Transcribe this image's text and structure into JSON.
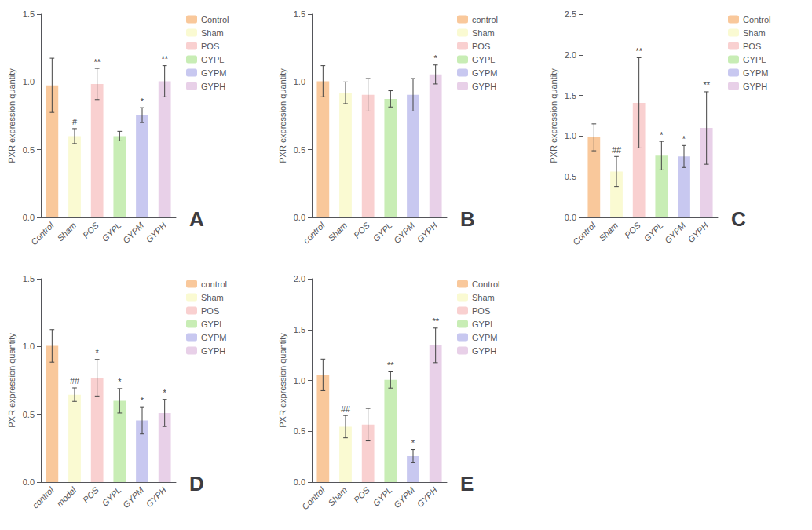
{
  "chart_data": [
    {
      "type": "bar",
      "title": "A",
      "ylabel": "PXR expression quantity",
      "categories": [
        "Control",
        "Sham",
        "POS",
        "GYPL",
        "GYPM",
        "GYPH"
      ],
      "ylim": [
        0,
        1.5
      ],
      "yticks": [
        {
          "value": 0.0,
          "label": "0.0"
        },
        0.5,
        {
          "value": 1.0,
          "label": "1.0"
        },
        1.5
      ],
      "grid": false,
      "legend": "right",
      "series": [
        {
          "name": "Control",
          "color": "#F9C89B",
          "values": [
            0.975,
            null,
            null,
            null,
            null,
            null
          ],
          "errors": [
            0.2,
            null,
            null,
            null,
            null,
            null
          ]
        },
        {
          "name": "Sham",
          "color": "#FAFAD2",
          "values": [
            null,
            0.6,
            null,
            null,
            null,
            null
          ],
          "errors": [
            null,
            0.055,
            null,
            null,
            null,
            null
          ],
          "annotations": [
            null,
            "#",
            null,
            null,
            null,
            null
          ]
        },
        {
          "name": "POS",
          "color": "#F9D0D0",
          "values": [
            null,
            null,
            0.985,
            null,
            null,
            null
          ],
          "errors": [
            null,
            null,
            0.115,
            null,
            null,
            null
          ],
          "annotations": [
            null,
            null,
            "**",
            null,
            null,
            null
          ]
        },
        {
          "name": "GYPL",
          "color": "#C8EDB5",
          "values": [
            null,
            null,
            null,
            0.6,
            null,
            null
          ],
          "errors": [
            null,
            null,
            null,
            0.035,
            null,
            null
          ]
        },
        {
          "name": "GYPM",
          "color": "#C8C8F0",
          "values": [
            null,
            null,
            null,
            null,
            0.755,
            null
          ],
          "errors": [
            null,
            null,
            null,
            null,
            0.055,
            null
          ],
          "annotations": [
            null,
            null,
            null,
            null,
            "*",
            null
          ]
        },
        {
          "name": "GYPH",
          "color": "#E8D0E8",
          "values": [
            null,
            null,
            null,
            null,
            null,
            1.005
          ],
          "errors": [
            null,
            null,
            null,
            null,
            null,
            0.115
          ],
          "annotations": [
            null,
            null,
            null,
            null,
            null,
            "**"
          ]
        }
      ]
    },
    {
      "type": "bar",
      "title": "B",
      "ylabel": "PXR expression quantity",
      "categories": [
        "control",
        "Sham",
        "POS",
        "GYPL",
        "GYPM",
        "GYPH"
      ],
      "ylim": [
        0,
        1.5
      ],
      "yticks": [
        {
          "value": 0.0,
          "label": "0.0"
        },
        0.5,
        {
          "value": 1.0,
          "label": "1.0"
        },
        1.5
      ],
      "grid": false,
      "legend": "right",
      "series": [
        {
          "name": "control",
          "color": "#F9C89B",
          "values": [
            1.005,
            null,
            null,
            null,
            null,
            null
          ],
          "errors": [
            0.115,
            null,
            null,
            null,
            null,
            null
          ]
        },
        {
          "name": "Sham",
          "color": "#FAFAD2",
          "values": [
            null,
            0.92,
            null,
            null,
            null,
            null
          ],
          "errors": [
            null,
            0.08,
            null,
            null,
            null,
            null
          ]
        },
        {
          "name": "POS",
          "color": "#F9D0D0",
          "values": [
            null,
            null,
            0.905,
            null,
            null,
            null
          ],
          "errors": [
            null,
            null,
            0.12,
            null,
            null,
            null
          ]
        },
        {
          "name": "GYPL",
          "color": "#C8EDB5",
          "values": [
            null,
            null,
            null,
            0.875,
            null,
            null
          ],
          "errors": [
            null,
            null,
            null,
            0.06,
            null,
            null
          ]
        },
        {
          "name": "GYPM",
          "color": "#C8C8F0",
          "values": [
            null,
            null,
            null,
            null,
            0.905,
            null
          ],
          "errors": [
            null,
            null,
            null,
            null,
            0.12,
            null
          ]
        },
        {
          "name": "GYPH",
          "color": "#E8D0E8",
          "values": [
            null,
            null,
            null,
            null,
            null,
            1.055
          ],
          "errors": [
            null,
            null,
            null,
            null,
            null,
            0.07
          ],
          "annotations": [
            null,
            null,
            null,
            null,
            null,
            "*"
          ]
        }
      ]
    },
    {
      "type": "bar",
      "title": "C",
      "ylabel": "PXR expression quantity",
      "categories": [
        "Control",
        "Sham",
        "POS",
        "GYPL",
        "GYPM",
        "GYPH"
      ],
      "ylim": [
        0,
        2.5
      ],
      "yticks": [
        {
          "value": 0.0,
          "label": "0.0"
        },
        0.5,
        {
          "value": 1.0,
          "label": "1.0"
        },
        1.5,
        {
          "value": 2.0,
          "label": "2.0"
        },
        2.5
      ],
      "grid": false,
      "legend": "right",
      "series": [
        {
          "name": "Control",
          "color": "#F9C89B",
          "values": [
            0.985,
            null,
            null,
            null,
            null,
            null
          ],
          "errors": [
            0.165,
            null,
            null,
            null,
            null,
            null
          ]
        },
        {
          "name": "Sham",
          "color": "#FAFAD2",
          "values": [
            null,
            0.565,
            null,
            null,
            null,
            null
          ],
          "errors": [
            null,
            0.185,
            null,
            null,
            null,
            null
          ],
          "annotations": [
            null,
            "##",
            null,
            null,
            null,
            null
          ]
        },
        {
          "name": "POS",
          "color": "#F9D0D0",
          "values": [
            null,
            null,
            1.41,
            null,
            null,
            null
          ],
          "errors": [
            null,
            null,
            0.555,
            null,
            null,
            null
          ],
          "annotations": [
            null,
            null,
            "**",
            null,
            null,
            null
          ]
        },
        {
          "name": "GYPL",
          "color": "#C8EDB5",
          "values": [
            null,
            null,
            null,
            0.76,
            null,
            null
          ],
          "errors": [
            null,
            null,
            null,
            0.175,
            null,
            null
          ],
          "annotations": [
            null,
            null,
            null,
            "*",
            null,
            null
          ]
        },
        {
          "name": "GYPM",
          "color": "#C8C8F0",
          "values": [
            null,
            null,
            null,
            null,
            0.75,
            null
          ],
          "errors": [
            null,
            null,
            null,
            null,
            0.135,
            null
          ],
          "annotations": [
            null,
            null,
            null,
            null,
            "*",
            null
          ]
        },
        {
          "name": "GYPH",
          "color": "#E8D0E8",
          "values": [
            null,
            null,
            null,
            null,
            null,
            1.1
          ],
          "errors": [
            null,
            null,
            null,
            null,
            null,
            0.445
          ],
          "annotations": [
            null,
            null,
            null,
            null,
            null,
            "**"
          ]
        }
      ]
    },
    {
      "type": "bar",
      "title": "D",
      "ylabel": "PXR expression quantity",
      "categories": [
        "control",
        "model",
        "POS",
        "GYPL",
        "GYPM",
        "GYPH"
      ],
      "ylim": [
        0,
        1.5
      ],
      "yticks": [
        {
          "value": 0.0,
          "label": "0.0"
        },
        0.5,
        {
          "value": 1.0,
          "label": "1.0"
        },
        1.5
      ],
      "grid": false,
      "legend": "right",
      "series": [
        {
          "name": "control",
          "color": "#F9C89B",
          "values": [
            1.005,
            null,
            null,
            null,
            null,
            null
          ],
          "errors": [
            0.12,
            null,
            null,
            null,
            null,
            null
          ]
        },
        {
          "name": "Sham",
          "color": "#FAFAD2",
          "values": [
            null,
            0.645,
            null,
            null,
            null,
            null
          ],
          "errors": [
            null,
            0.05,
            null,
            null,
            null,
            null
          ],
          "annotations": [
            null,
            "##",
            null,
            null,
            null,
            null
          ]
        },
        {
          "name": "POS",
          "color": "#F9D0D0",
          "values": [
            null,
            null,
            0.77,
            null,
            null,
            null
          ],
          "errors": [
            null,
            null,
            0.135,
            null,
            null,
            null
          ],
          "annotations": [
            null,
            null,
            "*",
            null,
            null,
            null
          ]
        },
        {
          "name": "GYPL",
          "color": "#C8EDB5",
          "values": [
            null,
            null,
            null,
            0.6,
            null,
            null
          ],
          "errors": [
            null,
            null,
            null,
            0.09,
            null,
            null
          ],
          "annotations": [
            null,
            null,
            null,
            "*",
            null,
            null
          ]
        },
        {
          "name": "GYPM",
          "color": "#C8C8F0",
          "values": [
            null,
            null,
            null,
            null,
            0.455,
            null
          ],
          "errors": [
            null,
            null,
            null,
            null,
            0.1,
            null
          ],
          "annotations": [
            null,
            null,
            null,
            null,
            "*",
            null
          ]
        },
        {
          "name": "GYPH",
          "color": "#E8D0E8",
          "values": [
            null,
            null,
            null,
            null,
            null,
            0.51
          ],
          "errors": [
            null,
            null,
            null,
            null,
            null,
            0.1
          ],
          "annotations": [
            null,
            null,
            null,
            null,
            null,
            "*"
          ]
        }
      ]
    },
    {
      "type": "bar",
      "title": "E",
      "ylabel": "PXR expression quantity",
      "categories": [
        "Control",
        "Sham",
        "POS",
        "GYPL",
        "GYPM",
        "GYPH"
      ],
      "ylim": [
        0,
        2.0
      ],
      "yticks": [
        {
          "value": 0.0,
          "label": "0.0"
        },
        0.5,
        {
          "value": 1.0,
          "label": "1.0"
        },
        1.5,
        {
          "value": 2.0,
          "label": "2.0"
        }
      ],
      "grid": false,
      "legend": "right",
      "series": [
        {
          "name": "Control",
          "color": "#F9C89B",
          "values": [
            1.055,
            null,
            null,
            null,
            null,
            null
          ],
          "errors": [
            0.155,
            null,
            null,
            null,
            null,
            null
          ]
        },
        {
          "name": "Sham",
          "color": "#FAFAD2",
          "values": [
            null,
            0.545,
            null,
            null,
            null,
            null
          ],
          "errors": [
            null,
            0.11,
            null,
            null,
            null,
            null
          ],
          "annotations": [
            null,
            "##",
            null,
            null,
            null,
            null
          ]
        },
        {
          "name": "POS",
          "color": "#F9D0D0",
          "values": [
            null,
            null,
            0.565,
            null,
            null,
            null
          ],
          "errors": [
            null,
            null,
            0.16,
            null,
            null,
            null
          ]
        },
        {
          "name": "GYPL",
          "color": "#C8EDB5",
          "values": [
            null,
            null,
            null,
            1.005,
            null,
            null
          ],
          "errors": [
            null,
            null,
            null,
            0.08,
            null,
            null
          ],
          "annotations": [
            null,
            null,
            null,
            "**",
            null,
            null
          ]
        },
        {
          "name": "GYPM",
          "color": "#C8C8F0",
          "values": [
            null,
            null,
            null,
            null,
            0.255,
            null
          ],
          "errors": [
            null,
            null,
            null,
            null,
            0.065,
            null
          ],
          "annotations": [
            null,
            null,
            null,
            null,
            "*",
            null
          ]
        },
        {
          "name": "GYPH",
          "color": "#E8D0E8",
          "values": [
            null,
            null,
            null,
            null,
            null,
            1.345
          ],
          "errors": [
            null,
            null,
            null,
            null,
            null,
            0.17
          ],
          "annotations": [
            null,
            null,
            null,
            null,
            null,
            "**"
          ]
        }
      ]
    }
  ]
}
